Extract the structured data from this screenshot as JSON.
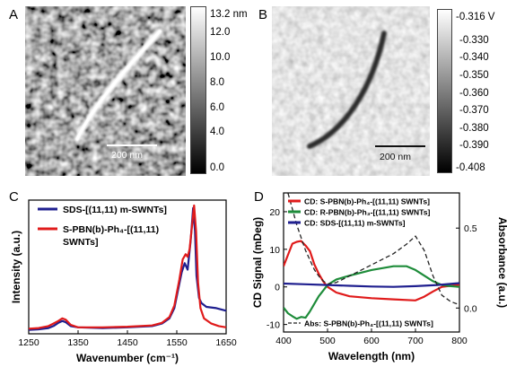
{
  "panels": {
    "A": {
      "label": "A",
      "scalebar": "200 nm",
      "colorbar": {
        "ticks": [
          "13.2 nm",
          "12.0",
          "10.0",
          "8.0",
          "6.0",
          "4.0",
          "0.0"
        ]
      }
    },
    "B": {
      "label": "B",
      "scalebar": "200 nm",
      "colorbar": {
        "ticks": [
          "-0.316 V",
          "-0.330",
          "-0.340",
          "-0.350",
          "-0.360",
          "-0.370",
          "-0.380",
          "-0.390",
          "-0.408"
        ]
      }
    },
    "C": {
      "label": "C"
    },
    "D": {
      "label": "D"
    }
  },
  "chart_data": [
    {
      "type": "line",
      "panel": "C",
      "xlabel": "Wavenumber (cm⁻¹)",
      "ylabel": "Intensity (a.u.)",
      "xlim": [
        1250,
        1650
      ],
      "xticks": [
        "1250",
        "1350",
        "1450",
        "1550",
        "1650"
      ],
      "legend": "top-left",
      "series": [
        {
          "name": "SDS-[(11,11) m-SWNTs]",
          "color": "#1f1f8f",
          "x": [
            1250,
            1270,
            1290,
            1300,
            1310,
            1318,
            1325,
            1335,
            1350,
            1400,
            1450,
            1500,
            1520,
            1535,
            1545,
            1552,
            1560,
            1566,
            1572,
            1578,
            1583,
            1587,
            1590,
            1595,
            1600,
            1610,
            1630,
            1650
          ],
          "y": [
            0.03,
            0.035,
            0.045,
            0.06,
            0.085,
            0.1,
            0.09,
            0.06,
            0.05,
            0.045,
            0.05,
            0.06,
            0.08,
            0.12,
            0.2,
            0.33,
            0.48,
            0.55,
            0.5,
            0.72,
            0.98,
            0.8,
            0.45,
            0.28,
            0.24,
            0.21,
            0.2,
            0.18
          ]
        },
        {
          "name": "S-PBN(b)-Ph₄-[(11,11) SWNTs]",
          "color": "#e01b1b",
          "x": [
            1250,
            1270,
            1290,
            1300,
            1310,
            1318,
            1325,
            1335,
            1350,
            1400,
            1450,
            1500,
            1520,
            1535,
            1545,
            1555,
            1562,
            1568,
            1572,
            1576,
            1581,
            1585,
            1589,
            1593,
            1598,
            1605,
            1620,
            1635,
            1650
          ],
          "y": [
            0.04,
            0.045,
            0.06,
            0.08,
            0.1,
            0.12,
            0.11,
            0.07,
            0.05,
            0.05,
            0.055,
            0.065,
            0.085,
            0.13,
            0.22,
            0.42,
            0.58,
            0.62,
            0.6,
            0.66,
            0.85,
            1.0,
            0.8,
            0.4,
            0.2,
            0.12,
            0.08,
            0.06,
            0.05
          ]
        }
      ]
    },
    {
      "type": "line",
      "panel": "D",
      "xlabel": "Wavelength (nm)",
      "ylabel": "CD Signal (mDeg)",
      "y2label": "Absorbance (a.u.)",
      "xlim": [
        400,
        800
      ],
      "ylim": [
        -12,
        25
      ],
      "y2lim": [
        -0.15,
        0.72
      ],
      "xticks": [
        "400",
        "500",
        "600",
        "700",
        "800"
      ],
      "yticks": [
        "20",
        "10",
        "0",
        "-10"
      ],
      "y2ticks": [
        "0.5",
        "0.0"
      ],
      "series": [
        {
          "name": "CD: S-PBN(b)-Ph₄-[(11,11) SWNTs]",
          "color": "#e01b1b",
          "axis": "left",
          "x": [
            400,
            410,
            420,
            430,
            440,
            450,
            460,
            470,
            480,
            490,
            500,
            520,
            550,
            600,
            650,
            700,
            720,
            740,
            760,
            780,
            800
          ],
          "y": [
            5.5,
            8.5,
            11.5,
            12.0,
            12.2,
            11.0,
            9.5,
            6.0,
            3.5,
            1.5,
            0.0,
            -1.5,
            -2.5,
            -3.0,
            -3.3,
            -3.6,
            -2.6,
            -1.2,
            0.0,
            0.3,
            0.6
          ]
        },
        {
          "name": "CD: R-PBN(b)-Ph₃-[(11,11) SWNTs]",
          "color": "#1e8c3a",
          "axis": "left",
          "x": [
            400,
            410,
            420,
            430,
            440,
            450,
            460,
            470,
            480,
            490,
            500,
            520,
            550,
            600,
            650,
            680,
            700,
            720,
            740,
            760,
            780,
            800
          ],
          "y": [
            -5.5,
            -7.0,
            -7.8,
            -8.5,
            -8.0,
            -8.2,
            -6.5,
            -4.5,
            -2.5,
            -1.0,
            0.5,
            2.0,
            3.0,
            4.5,
            5.5,
            5.5,
            4.5,
            3.0,
            1.5,
            0.5,
            0.2,
            0.0
          ]
        },
        {
          "name": "CD: SDS-[(11,11) m-SWNTs]",
          "color": "#1f1f8f",
          "axis": "left",
          "x": [
            400,
            450,
            500,
            550,
            600,
            650,
            700,
            750,
            800
          ],
          "y": [
            0.9,
            0.7,
            0.5,
            0.3,
            0.1,
            0.0,
            0.2,
            0.5,
            1.0
          ]
        },
        {
          "name": "Abs: S-PBN(b)-Ph₄-[(11,11) SWNTs]",
          "color": "#222222",
          "axis": "right",
          "dashed": true,
          "x": [
            400,
            410,
            420,
            430,
            440,
            450,
            460,
            470,
            480,
            490,
            500,
            520,
            550,
            600,
            650,
            680,
            700,
            720,
            740,
            760,
            780,
            800
          ],
          "y": [
            0.85,
            0.72,
            0.62,
            0.52,
            0.44,
            0.36,
            0.3,
            0.24,
            0.2,
            0.17,
            0.15,
            0.16,
            0.2,
            0.27,
            0.34,
            0.4,
            0.45,
            0.36,
            0.2,
            0.08,
            0.04,
            0.02
          ]
        }
      ]
    }
  ]
}
